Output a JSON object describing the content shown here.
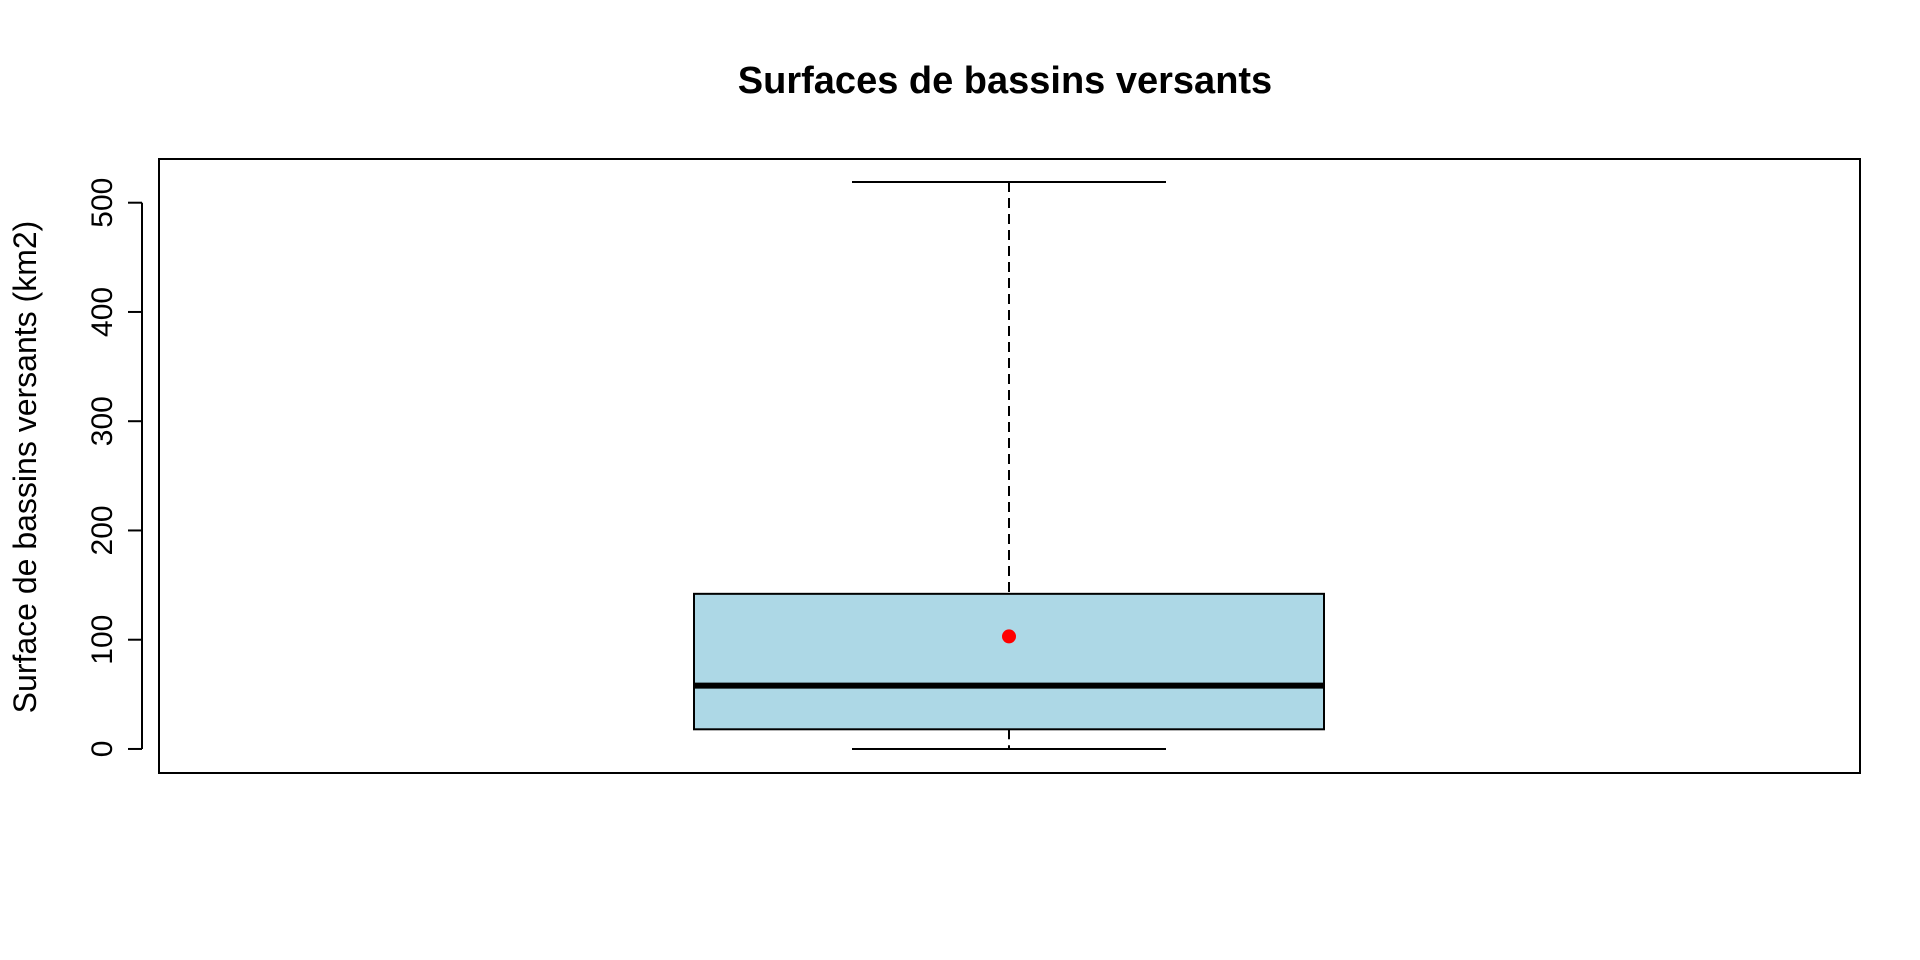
{
  "chart_data": {
    "type": "box",
    "title": "Surfaces de bassins versants",
    "xlabel": "",
    "ylabel": "Surface de bassins versants (km2)",
    "ylim": [
      -22,
      540
    ],
    "yticks": [
      0,
      100,
      200,
      300,
      400,
      500
    ],
    "ytick_labels": [
      "0",
      "100",
      "200",
      "300",
      "400",
      "500"
    ],
    "grid": false,
    "box": {
      "min": 0,
      "q1": 18,
      "median": 58,
      "q3": 142,
      "max": 519,
      "mean": 103
    },
    "colors": {
      "box_fill": "#add8e6",
      "mean_point": "#ff0000",
      "lines": "#000000"
    }
  }
}
